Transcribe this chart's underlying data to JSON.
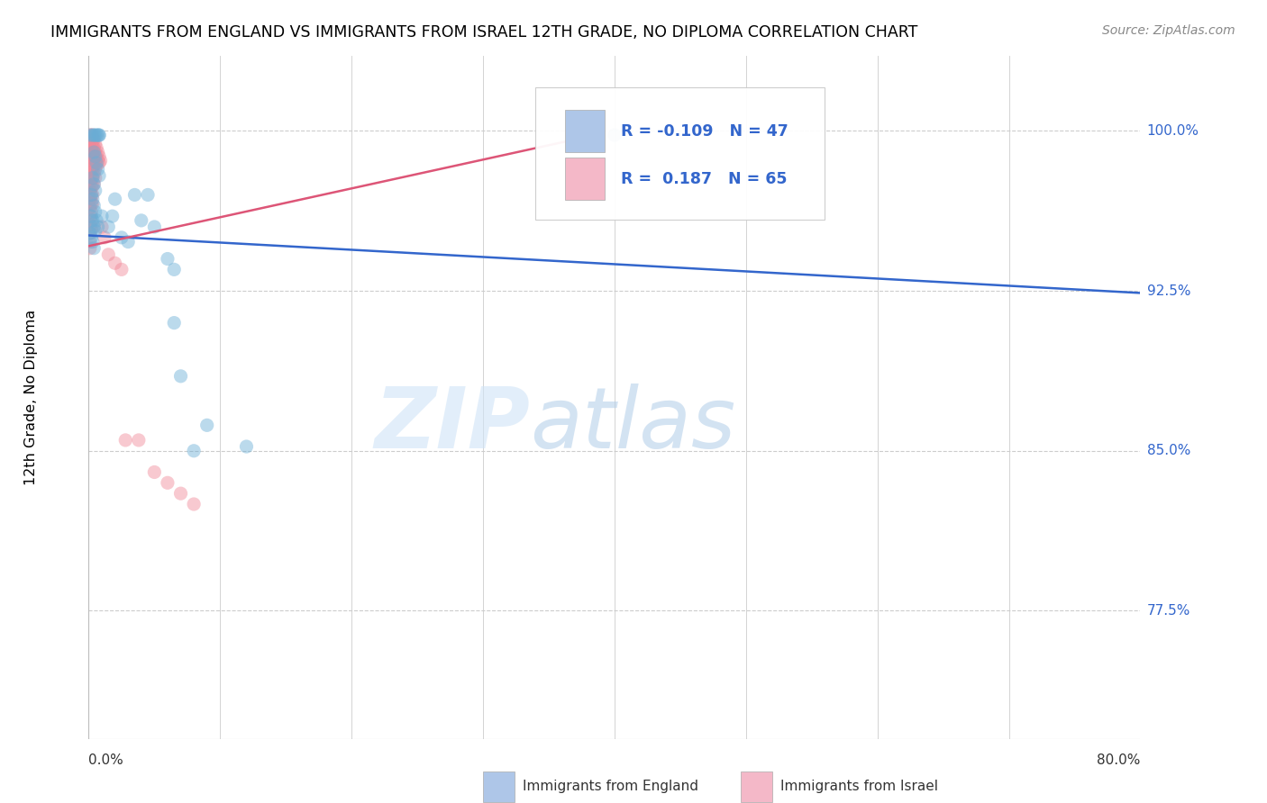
{
  "title": "IMMIGRANTS FROM ENGLAND VS IMMIGRANTS FROM ISRAEL 12TH GRADE, NO DIPLOMA CORRELATION CHART",
  "source": "Source: ZipAtlas.com",
  "ylabel": "12th Grade, No Diploma",
  "ytick_values": [
    1.0,
    0.925,
    0.85,
    0.775
  ],
  "ytick_labels": [
    "100.0%",
    "92.5%",
    "85.0%",
    "77.5%"
  ],
  "xrange": [
    0.0,
    0.8
  ],
  "yrange": [
    0.715,
    1.035
  ],
  "legend_england": {
    "R": "-0.109",
    "N": "47",
    "color": "#aec6e8"
  },
  "legend_israel": {
    "R": "0.187",
    "N": "65",
    "color": "#f4b8c8"
  },
  "england_scatter_color": "#6aaed6",
  "israel_scatter_color": "#f08898",
  "england_line_color": "#3366cc",
  "israel_line_color": "#dd5577",
  "watermark": "ZIPatlas",
  "england_line": {
    "x0": 0.0,
    "y0": 0.951,
    "x1": 0.8,
    "y1": 0.924
  },
  "israel_line": {
    "x0": 0.0,
    "y0": 0.946,
    "x1": 0.385,
    "y1": 0.998
  },
  "england_points": [
    [
      0.001,
      0.998
    ],
    [
      0.003,
      0.998
    ],
    [
      0.004,
      0.998
    ],
    [
      0.005,
      0.998
    ],
    [
      0.006,
      0.998
    ],
    [
      0.007,
      0.998
    ],
    [
      0.008,
      0.998
    ],
    [
      0.008,
      0.998
    ],
    [
      0.004,
      0.99
    ],
    [
      0.005,
      0.988
    ],
    [
      0.006,
      0.985
    ],
    [
      0.007,
      0.982
    ],
    [
      0.008,
      0.979
    ],
    [
      0.003,
      0.978
    ],
    [
      0.004,
      0.975
    ],
    [
      0.005,
      0.972
    ],
    [
      0.002,
      0.97
    ],
    [
      0.003,
      0.968
    ],
    [
      0.004,
      0.965
    ],
    [
      0.005,
      0.962
    ],
    [
      0.002,
      0.96
    ],
    [
      0.003,
      0.958
    ],
    [
      0.004,
      0.955
    ],
    [
      0.005,
      0.953
    ],
    [
      0.001,
      0.952
    ],
    [
      0.002,
      0.95
    ],
    [
      0.003,
      0.948
    ],
    [
      0.004,
      0.945
    ],
    [
      0.006,
      0.958
    ],
    [
      0.007,
      0.955
    ],
    [
      0.01,
      0.96
    ],
    [
      0.015,
      0.955
    ],
    [
      0.018,
      0.96
    ],
    [
      0.02,
      0.968
    ],
    [
      0.025,
      0.95
    ],
    [
      0.03,
      0.948
    ],
    [
      0.035,
      0.97
    ],
    [
      0.04,
      0.958
    ],
    [
      0.045,
      0.97
    ],
    [
      0.05,
      0.955
    ],
    [
      0.06,
      0.94
    ],
    [
      0.065,
      0.935
    ],
    [
      0.065,
      0.91
    ],
    [
      0.07,
      0.885
    ],
    [
      0.08,
      0.85
    ],
    [
      0.09,
      0.862
    ],
    [
      0.12,
      0.852
    ],
    [
      0.4,
      0.998
    ]
  ],
  "israel_points": [
    [
      0.001,
      0.998
    ],
    [
      0.001,
      0.995
    ],
    [
      0.001,
      0.992
    ],
    [
      0.001,
      0.988
    ],
    [
      0.001,
      0.984
    ],
    [
      0.001,
      0.98
    ],
    [
      0.001,
      0.976
    ],
    [
      0.001,
      0.972
    ],
    [
      0.001,
      0.968
    ],
    [
      0.001,
      0.964
    ],
    [
      0.001,
      0.96
    ],
    [
      0.001,
      0.956
    ],
    [
      0.001,
      0.952
    ],
    [
      0.001,
      0.948
    ],
    [
      0.001,
      0.945
    ],
    [
      0.002,
      0.998
    ],
    [
      0.002,
      0.994
    ],
    [
      0.002,
      0.99
    ],
    [
      0.002,
      0.986
    ],
    [
      0.002,
      0.982
    ],
    [
      0.002,
      0.978
    ],
    [
      0.002,
      0.974
    ],
    [
      0.002,
      0.97
    ],
    [
      0.002,
      0.966
    ],
    [
      0.002,
      0.962
    ],
    [
      0.002,
      0.958
    ],
    [
      0.002,
      0.954
    ],
    [
      0.003,
      0.998
    ],
    [
      0.003,
      0.994
    ],
    [
      0.003,
      0.99
    ],
    [
      0.003,
      0.986
    ],
    [
      0.003,
      0.982
    ],
    [
      0.003,
      0.978
    ],
    [
      0.003,
      0.974
    ],
    [
      0.003,
      0.97
    ],
    [
      0.003,
      0.966
    ],
    [
      0.004,
      0.996
    ],
    [
      0.004,
      0.992
    ],
    [
      0.004,
      0.988
    ],
    [
      0.004,
      0.984
    ],
    [
      0.004,
      0.98
    ],
    [
      0.004,
      0.975
    ],
    [
      0.005,
      0.994
    ],
    [
      0.005,
      0.99
    ],
    [
      0.005,
      0.986
    ],
    [
      0.005,
      0.982
    ],
    [
      0.005,
      0.978
    ],
    [
      0.006,
      0.992
    ],
    [
      0.006,
      0.988
    ],
    [
      0.006,
      0.984
    ],
    [
      0.007,
      0.99
    ],
    [
      0.007,
      0.986
    ],
    [
      0.008,
      0.988
    ],
    [
      0.008,
      0.985
    ],
    [
      0.009,
      0.986
    ],
    [
      0.01,
      0.955
    ],
    [
      0.012,
      0.95
    ],
    [
      0.015,
      0.942
    ],
    [
      0.02,
      0.938
    ],
    [
      0.025,
      0.935
    ],
    [
      0.028,
      0.855
    ],
    [
      0.038,
      0.855
    ],
    [
      0.05,
      0.84
    ],
    [
      0.06,
      0.835
    ],
    [
      0.07,
      0.83
    ],
    [
      0.08,
      0.825
    ]
  ]
}
